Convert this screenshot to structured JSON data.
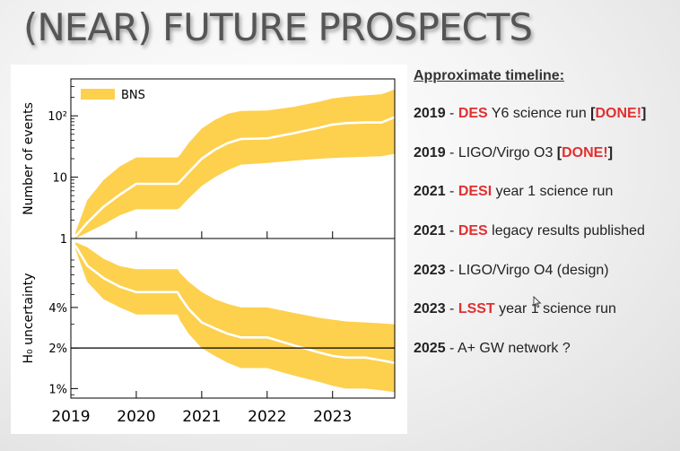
{
  "slide": {
    "title": "(NEAR) FUTURE PROSPECTS"
  },
  "timeline": {
    "heading": "Approximate timeline:",
    "items": [
      {
        "year": "2019",
        "sep": " - ",
        "before": "",
        "highlight": "DES",
        "after": " Y6 science run ",
        "bracket_open": "[",
        "done": "DONE!",
        "bracket_close": "]"
      },
      {
        "year": "2019",
        "sep": " - ",
        "before": "LIGO/Virgo O3 ",
        "highlight": "",
        "after": "",
        "bracket_open": "[",
        "done": "DONE!",
        "bracket_close": "]"
      },
      {
        "year": "2021",
        "sep": " - ",
        "before": "",
        "highlight": "DESI",
        "after": " year 1 science run",
        "bracket_open": "",
        "done": "",
        "bracket_close": ""
      },
      {
        "year": "2021",
        "sep": " - ",
        "before": "",
        "highlight": "DES",
        "after": " legacy results published",
        "bracket_open": "",
        "done": "",
        "bracket_close": ""
      },
      {
        "year": "2023",
        "sep": " - ",
        "before": "LIGO/Virgo O4 (design)",
        "highlight": "",
        "after": "",
        "bracket_open": "",
        "done": "",
        "bracket_close": ""
      },
      {
        "year": "2023",
        "sep": " - ",
        "before": "",
        "highlight": "LSST",
        "after": " year 1 science run",
        "bracket_open": "",
        "done": "",
        "bracket_close": ""
      },
      {
        "year": "2025",
        "sep": " - ",
        "before": "A+ GW network ?",
        "highlight": "",
        "after": "",
        "bracket_open": "",
        "done": "",
        "bracket_close": ""
      }
    ]
  },
  "colors": {
    "band": "#fdd04e",
    "median": "#ffffff",
    "highlight": "#e03030",
    "axis": "#000000"
  },
  "chart_data": [
    {
      "type": "area",
      "panel": "top",
      "ylabel": "Number of events",
      "yscale": "log",
      "xlim": [
        2019,
        2023.95
      ],
      "ylim": [
        1,
        400
      ],
      "yticks": [
        1,
        10,
        100
      ],
      "ytick_labels": [
        "1",
        "10",
        "10²"
      ],
      "legend": {
        "label": "BNS",
        "location": "upper-left"
      },
      "series": [
        {
          "name": "BNS",
          "x": [
            2019.07,
            2019.25,
            2019.5,
            2019.75,
            2020.0,
            2020.35,
            2020.63,
            2020.67,
            2020.8,
            2021.0,
            2021.2,
            2021.4,
            2021.6,
            2022.0,
            2022.4,
            2022.8,
            2023.0,
            2023.2,
            2023.5,
            2023.75,
            2023.95
          ],
          "median": [
            1.08,
            1.8,
            3.3,
            5.2,
            7.8,
            7.8,
            7.8,
            8.5,
            12,
            20,
            28,
            36,
            42,
            43,
            52,
            64,
            72,
            76,
            78,
            78,
            95
          ],
          "lower": [
            1.0,
            1.25,
            1.7,
            2.4,
            3.0,
            3.0,
            3.0,
            3.2,
            4.5,
            7.2,
            10,
            13,
            16,
            17,
            18.5,
            20,
            20.5,
            21,
            21.5,
            22,
            24
          ],
          "upper": [
            1.25,
            4.2,
            9,
            15,
            21,
            21,
            21,
            23,
            36,
            62,
            86,
            108,
            120,
            122,
            140,
            170,
            192,
            205,
            215,
            225,
            270
          ]
        }
      ]
    },
    {
      "type": "area",
      "panel": "bottom",
      "ylabel": "H₀ uncertainty",
      "yscale": "log",
      "xlim": [
        2019,
        2023.95
      ],
      "ylim": [
        0.85,
        13
      ],
      "yticks": [
        1,
        2,
        4
      ],
      "ytick_labels": [
        "1%",
        "2%",
        "4%"
      ],
      "hline": 2,
      "xticks": [
        2019,
        2020,
        2021,
        2022,
        2023
      ],
      "xtick_labels": [
        "2019",
        "2020",
        "2021",
        "2022",
        "2023"
      ],
      "series": [
        {
          "name": "BNS",
          "x": [
            2019.07,
            2019.25,
            2019.5,
            2019.75,
            2020.0,
            2020.35,
            2020.63,
            2020.67,
            2020.8,
            2021.0,
            2021.2,
            2021.4,
            2021.6,
            2022.0,
            2022.4,
            2022.8,
            2023.0,
            2023.2,
            2023.5,
            2023.75,
            2023.95
          ],
          "median": [
            11.5,
            8.2,
            6.6,
            5.7,
            5.2,
            5.2,
            5.2,
            4.8,
            3.9,
            3.1,
            2.8,
            2.55,
            2.4,
            2.4,
            2.1,
            1.85,
            1.75,
            1.7,
            1.7,
            1.62,
            1.55
          ],
          "lower": [
            10.8,
            6.2,
            4.6,
            4.0,
            3.55,
            3.55,
            3.55,
            3.2,
            2.55,
            2.0,
            1.75,
            1.55,
            1.42,
            1.42,
            1.25,
            1.12,
            1.05,
            1.0,
            1.0,
            0.97,
            0.94
          ],
          "upper": [
            12.2,
            11.2,
            9.2,
            8.1,
            7.7,
            7.7,
            7.7,
            7.2,
            6.2,
            5.2,
            4.6,
            4.25,
            4.0,
            4.0,
            3.65,
            3.35,
            3.25,
            3.15,
            3.1,
            3.05,
            3.0
          ]
        }
      ]
    }
  ]
}
